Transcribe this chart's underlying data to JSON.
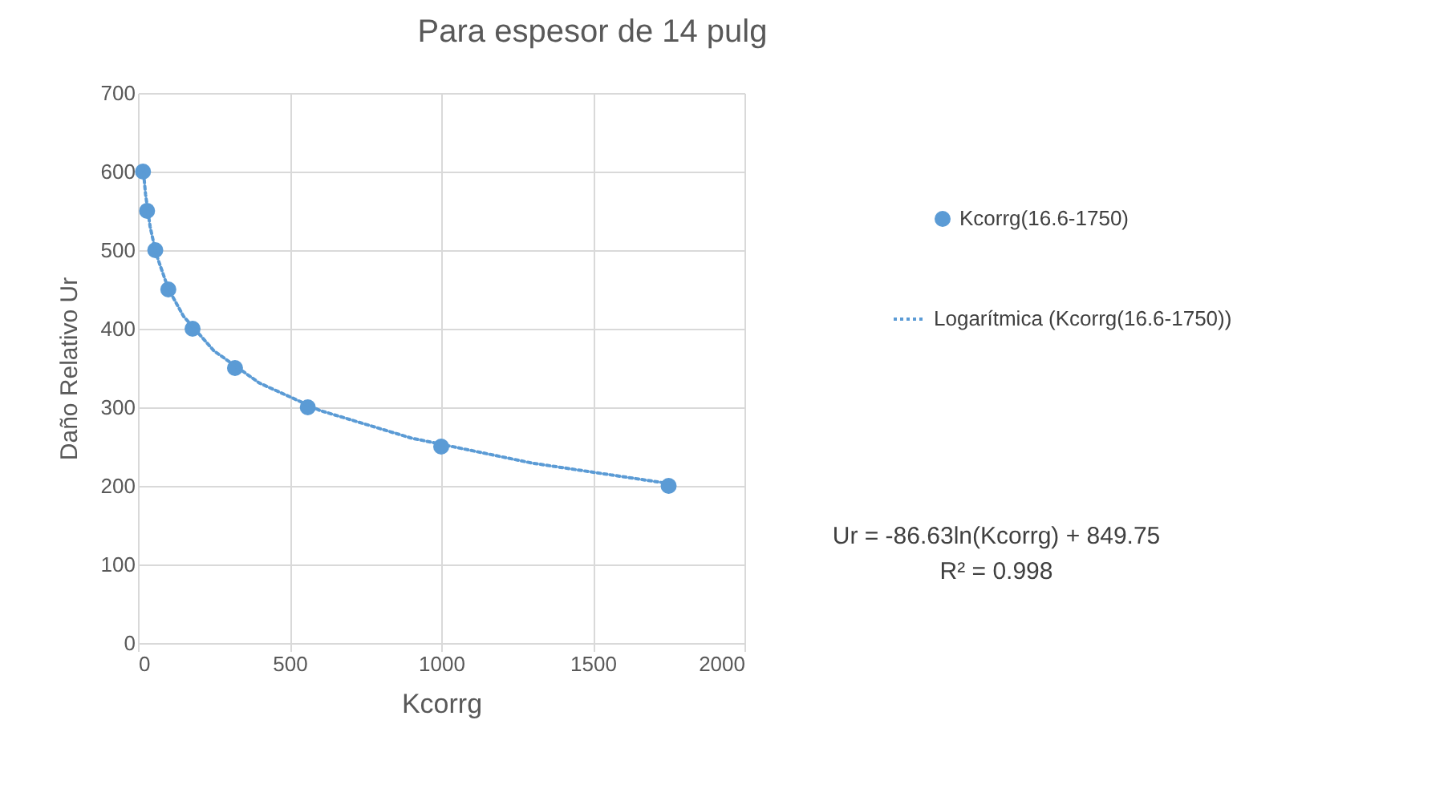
{
  "chart_data": {
    "type": "scatter",
    "title": "Para espesor de 14 pulg",
    "xlabel": "Kcorrg",
    "ylabel": "Daño Relativo Ur",
    "xlim": [
      0,
      2000
    ],
    "xticks": [
      0,
      500,
      1000,
      1500,
      2000
    ],
    "ylim": [
      0,
      700
    ],
    "yticks": [
      0,
      100,
      200,
      300,
      400,
      500,
      600,
      700
    ],
    "grid": true,
    "legend": "right",
    "series": [
      {
        "name": "Kcorrg(16.6-1750)",
        "marker": "circle",
        "color": "#5b9bd5",
        "x": [
          16.6,
          30,
          57,
          100,
          180,
          320,
          560,
          1000,
          1750
        ],
        "values": [
          600,
          550,
          500,
          450,
          400,
          350,
          300,
          250,
          200
        ]
      },
      {
        "name": "Logarítmica (Kcorrg(16.6-1750))",
        "type": "line",
        "line_style": "dotted",
        "marker": "none",
        "color": "#5b9bd5",
        "x": [
          16.6,
          25,
          40,
          60,
          100,
          150,
          250,
          400,
          600,
          900,
          1300,
          1750
        ],
        "values": [
          606,
          571,
          530,
          495,
          451,
          416,
          372,
          331,
          296,
          261,
          229,
          203
        ]
      }
    ],
    "annotations": [
      "Ur = -86.63ln(Kcorrg) + 849.75",
      "R² = 0.998"
    ]
  }
}
